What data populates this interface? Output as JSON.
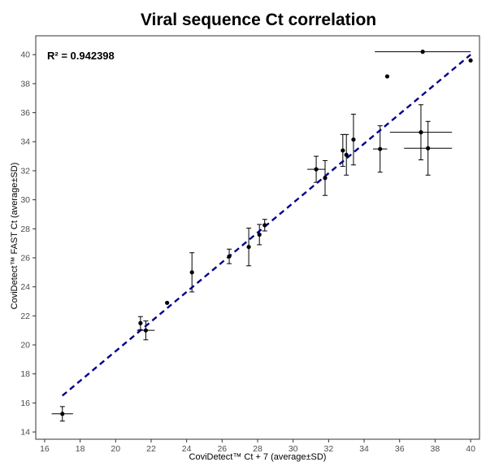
{
  "chart_data": {
    "type": "scatter",
    "title": "Viral sequence Ct correlation",
    "xlabel": "CoviDetect™ Ct + 7 (average±SD)",
    "ylabel": "CoviDetect™ FAST Ct (average±SD)",
    "annotation": "R² = 0.942398",
    "xlim": [
      15.5,
      40.5
    ],
    "ylim": [
      13.5,
      41.3
    ],
    "xticks": [
      16,
      18,
      20,
      22,
      24,
      26,
      28,
      30,
      32,
      34,
      36,
      38,
      40
    ],
    "yticks": [
      14,
      16,
      18,
      20,
      22,
      24,
      26,
      28,
      30,
      32,
      34,
      36,
      38,
      40
    ],
    "grid": false,
    "colors": {
      "points": "#000000",
      "trendline": "#00008b"
    },
    "trendline": {
      "x": [
        17.0,
        40.0
      ],
      "y": [
        16.5,
        40.0
      ],
      "style": "dashed"
    },
    "points": [
      {
        "x": 17.0,
        "y": 15.25,
        "xerr": 0.6,
        "yerr": 0.5
      },
      {
        "x": 21.4,
        "y": 21.5,
        "xerr": 0,
        "yerr": 0.45
      },
      {
        "x": 21.7,
        "y": 21.0,
        "xerr": 0.5,
        "yerr": 0.65
      },
      {
        "x": 22.9,
        "y": 22.9,
        "xerr": 0,
        "yerr": 0
      },
      {
        "x": 24.3,
        "y": 25.0,
        "xerr": 0,
        "yerr": 1.35
      },
      {
        "x": 26.4,
        "y": 26.1,
        "xerr": 0,
        "yerr": 0.5
      },
      {
        "x": 27.5,
        "y": 26.75,
        "xerr": 0,
        "yerr": 1.3
      },
      {
        "x": 28.1,
        "y": 27.6,
        "xerr": 0,
        "yerr": 0.7
      },
      {
        "x": 28.4,
        "y": 28.25,
        "xerr": 0,
        "yerr": 0.4
      },
      {
        "x": 31.3,
        "y": 32.1,
        "xerr": 0.5,
        "yerr": 0.9
      },
      {
        "x": 31.8,
        "y": 31.5,
        "xerr": 0,
        "yerr": 1.2
      },
      {
        "x": 32.8,
        "y": 33.4,
        "xerr": 0,
        "yerr": 1.1
      },
      {
        "x": 33.0,
        "y": 33.1,
        "xerr": 0,
        "yerr": 1.4
      },
      {
        "x": 33.4,
        "y": 34.15,
        "xerr": 0,
        "yerr": 1.75
      },
      {
        "x": 34.9,
        "y": 33.5,
        "xerr": 0.4,
        "yerr": 1.6
      },
      {
        "x": 35.3,
        "y": 38.5,
        "xerr": 0,
        "yerr": 0
      },
      {
        "x": 37.2,
        "y": 34.65,
        "xerr": 1.75,
        "yerr": 1.9
      },
      {
        "x": 37.3,
        "y": 40.2,
        "xerr": 2.7,
        "yerr": 0
      },
      {
        "x": 37.6,
        "y": 33.55,
        "xerr": 1.35,
        "yerr": 1.85
      },
      {
        "x": 40.0,
        "y": 39.6,
        "xerr": 0,
        "yerr": 0
      }
    ]
  }
}
